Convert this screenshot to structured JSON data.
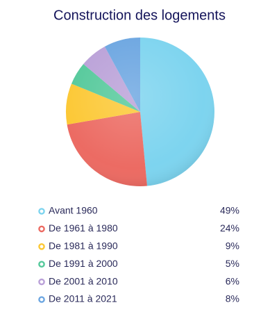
{
  "chart_data": {
    "type": "pie",
    "title": "Construction des logements",
    "categories": [
      "Avant 1960",
      "De 1961 à 1980",
      "De 1981 à 1990",
      "De 1991 à 2000",
      "De 2001 à 2010",
      "De 2011 à 2021"
    ],
    "values": [
      49,
      24,
      9,
      5,
      6,
      8
    ],
    "value_labels": [
      "49%",
      "24%",
      "9%",
      "5%",
      "6%",
      "8%"
    ],
    "colors": [
      "#7dd4ef",
      "#ec6b63",
      "#fcc835",
      "#55c99b",
      "#baa1d8",
      "#6ca6e1"
    ]
  }
}
